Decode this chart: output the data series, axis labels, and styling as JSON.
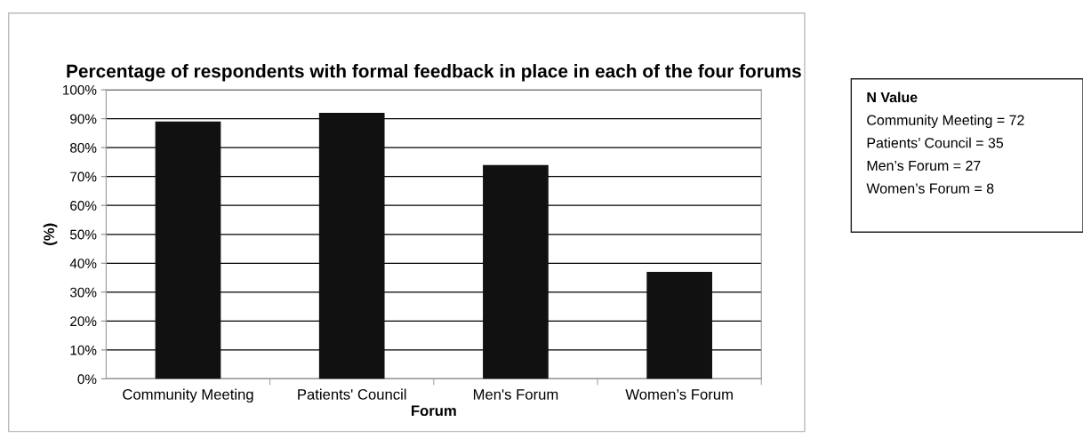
{
  "chart_data": {
    "type": "bar",
    "title": "Percentage of respondents with formal feedback in place in each of the four forums",
    "xlabel": "Forum",
    "ylabel": "(%)",
    "categories": [
      "Community Meeting",
      "Patients' Council",
      "Men's Forum",
      "Women’s Forum"
    ],
    "values": [
      89,
      92,
      74,
      37
    ],
    "color": "#111111",
    "ylim": [
      0,
      100
    ],
    "yticks": [
      {
        "value": 0,
        "label": "0%"
      },
      {
        "value": 10,
        "label": "10%"
      },
      {
        "value": 20,
        "label": "20%"
      },
      {
        "value": 30,
        "label": "30%"
      },
      {
        "value": 40,
        "label": "40%"
      },
      {
        "value": 50,
        "label": "50%"
      },
      {
        "value": 60,
        "label": "60%"
      },
      {
        "value": 70,
        "label": "70%"
      },
      {
        "value": 80,
        "label": "80%"
      },
      {
        "value": 90,
        "label": "90%"
      },
      {
        "value": 100,
        "label": "100%"
      }
    ],
    "grid": "y",
    "legend": false,
    "annotations": [
      "N Value",
      "Community Meeting = 72",
      "Patients’ Council = 35",
      "Men’s Forum = 27",
      "Women’s Forum = 8"
    ]
  }
}
